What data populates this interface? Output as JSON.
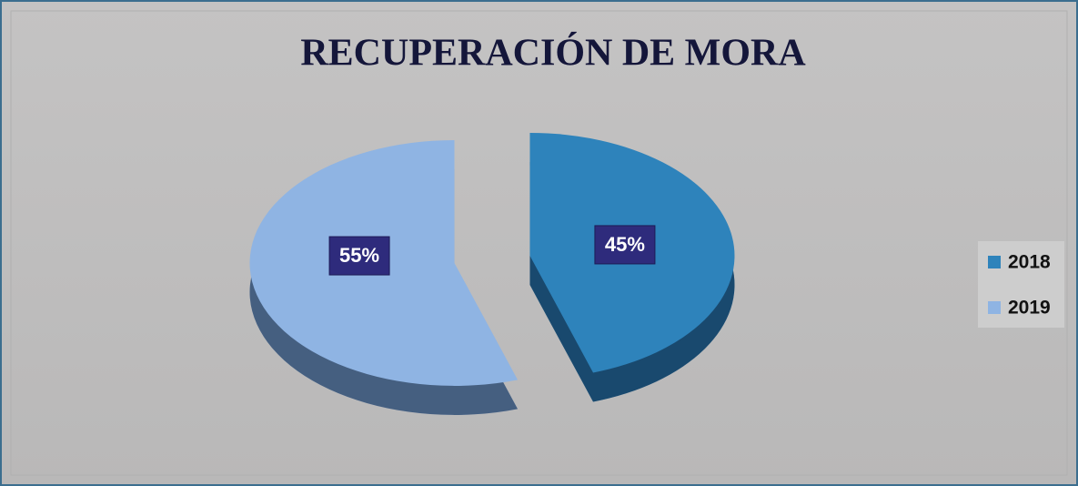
{
  "chart_data": {
    "type": "pie",
    "title": "RECUPERACIÓN DE MORA",
    "categories": [
      "2018",
      "2019"
    ],
    "values": [
      45,
      55
    ],
    "value_labels": [
      "45%",
      "55%"
    ],
    "colors": [
      "#2e83bb",
      "#8fb4e3"
    ],
    "legend": "right"
  }
}
